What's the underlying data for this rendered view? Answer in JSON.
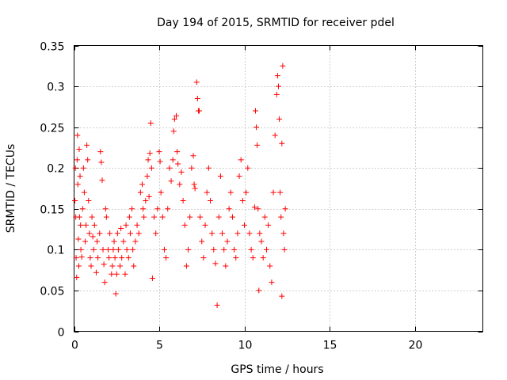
{
  "chart_data": {
    "type": "scatter",
    "title": "Day 194 of 2015, SRMTID for receiver pdel",
    "xlabel": "GPS time / hours",
    "ylabel": "SRMTID / TECUs",
    "xlim": [
      0,
      24
    ],
    "ylim": [
      0,
      0.35
    ],
    "x_ticks": [
      0,
      5,
      10,
      15,
      20
    ],
    "x_tick_labels": [
      "0",
      "5",
      "10",
      "15",
      "20"
    ],
    "y_ticks": [
      0,
      0.05,
      0.1,
      0.15,
      0.2,
      0.25,
      0.3,
      0.35
    ],
    "y_tick_labels": [
      "0",
      "0.05",
      "0.1",
      "0.15",
      "0.2",
      "0.25",
      "0.3",
      "0.35"
    ],
    "grid": true,
    "marker": "+",
    "marker_color": "#ff0000",
    "series": [
      {
        "name": "pdel",
        "points": [
          [
            0.05,
            0.16
          ],
          [
            0.08,
            0.2
          ],
          [
            0.1,
            0.14
          ],
          [
            0.12,
            0.09
          ],
          [
            0.15,
            0.066
          ],
          [
            0.18,
            0.21
          ],
          [
            0.2,
            0.24
          ],
          [
            0.22,
            0.18
          ],
          [
            0.25,
            0.113
          ],
          [
            0.28,
            0.08
          ],
          [
            0.3,
            0.223
          ],
          [
            0.32,
            0.14
          ],
          [
            0.35,
            0.19
          ],
          [
            0.38,
            0.13
          ],
          [
            0.4,
            0.1
          ],
          [
            0.45,
            0.091
          ],
          [
            0.5,
            0.15
          ],
          [
            0.55,
            0.2
          ],
          [
            0.6,
            0.17
          ],
          [
            0.65,
            0.11
          ],
          [
            0.7,
            0.13
          ],
          [
            0.75,
            0.228
          ],
          [
            0.8,
            0.21
          ],
          [
            0.85,
            0.16
          ],
          [
            0.9,
            0.12
          ],
          [
            0.95,
            0.09
          ],
          [
            1.0,
            0.08
          ],
          [
            1.05,
            0.14
          ],
          [
            1.1,
            0.116
          ],
          [
            1.15,
            0.1
          ],
          [
            1.2,
            0.13
          ],
          [
            1.3,
            0.072
          ],
          [
            1.35,
            0.11
          ],
          [
            1.4,
            0.09
          ],
          [
            1.5,
            0.12
          ],
          [
            1.55,
            0.22
          ],
          [
            1.6,
            0.207
          ],
          [
            1.65,
            0.185
          ],
          [
            1.7,
            0.1
          ],
          [
            1.75,
            0.082
          ],
          [
            1.8,
            0.06
          ],
          [
            1.85,
            0.15
          ],
          [
            1.9,
            0.14
          ],
          [
            2.0,
            0.1
          ],
          [
            2.05,
            0.09
          ],
          [
            2.1,
            0.12
          ],
          [
            2.2,
            0.07
          ],
          [
            2.25,
            0.08
          ],
          [
            2.3,
            0.1
          ],
          [
            2.35,
            0.11
          ],
          [
            2.4,
            0.09
          ],
          [
            2.45,
            0.046
          ],
          [
            2.5,
            0.07
          ],
          [
            2.55,
            0.12
          ],
          [
            2.6,
            0.1
          ],
          [
            2.7,
            0.08
          ],
          [
            2.75,
            0.126
          ],
          [
            2.8,
            0.09
          ],
          [
            2.9,
            0.11
          ],
          [
            3.0,
            0.07
          ],
          [
            3.05,
            0.13
          ],
          [
            3.1,
            0.1
          ],
          [
            3.2,
            0.09
          ],
          [
            3.25,
            0.14
          ],
          [
            3.3,
            0.12
          ],
          [
            3.4,
            0.15
          ],
          [
            3.45,
            0.1
          ],
          [
            3.5,
            0.08
          ],
          [
            3.6,
            0.11
          ],
          [
            3.7,
            0.13
          ],
          [
            3.8,
            0.12
          ],
          [
            3.9,
            0.17
          ],
          [
            4.0,
            0.18
          ],
          [
            4.05,
            0.15
          ],
          [
            4.1,
            0.14
          ],
          [
            4.2,
            0.16
          ],
          [
            4.3,
            0.19
          ],
          [
            4.35,
            0.21
          ],
          [
            4.4,
            0.165
          ],
          [
            4.45,
            0.218
          ],
          [
            4.5,
            0.255
          ],
          [
            4.55,
            0.2
          ],
          [
            4.6,
            0.065
          ],
          [
            4.7,
            0.14
          ],
          [
            4.8,
            0.12
          ],
          [
            4.9,
            0.15
          ],
          [
            5.0,
            0.22
          ],
          [
            5.05,
            0.208
          ],
          [
            5.1,
            0.17
          ],
          [
            5.2,
            0.14
          ],
          [
            5.3,
            0.1
          ],
          [
            5.4,
            0.09
          ],
          [
            5.5,
            0.15
          ],
          [
            5.6,
            0.2
          ],
          [
            5.7,
            0.184
          ],
          [
            5.8,
            0.21
          ],
          [
            5.85,
            0.245
          ],
          [
            5.9,
            0.26
          ],
          [
            6.0,
            0.264
          ],
          [
            6.05,
            0.22
          ],
          [
            6.1,
            0.205
          ],
          [
            6.2,
            0.18
          ],
          [
            6.3,
            0.195
          ],
          [
            6.4,
            0.16
          ],
          [
            6.5,
            0.13
          ],
          [
            6.6,
            0.08
          ],
          [
            6.7,
            0.1
          ],
          [
            6.8,
            0.14
          ],
          [
            6.9,
            0.2
          ],
          [
            7.0,
            0.215
          ],
          [
            7.05,
            0.18
          ],
          [
            7.1,
            0.175
          ],
          [
            7.2,
            0.305
          ],
          [
            7.25,
            0.285
          ],
          [
            7.3,
            0.27
          ],
          [
            7.35,
            0.27
          ],
          [
            7.4,
            0.14
          ],
          [
            7.5,
            0.11
          ],
          [
            7.6,
            0.09
          ],
          [
            7.7,
            0.13
          ],
          [
            7.8,
            0.17
          ],
          [
            7.9,
            0.2
          ],
          [
            8.0,
            0.16
          ],
          [
            8.1,
            0.12
          ],
          [
            8.2,
            0.1
          ],
          [
            8.3,
            0.083
          ],
          [
            8.4,
            0.032
          ],
          [
            8.5,
            0.14
          ],
          [
            8.6,
            0.19
          ],
          [
            8.7,
            0.12
          ],
          [
            8.8,
            0.1
          ],
          [
            8.9,
            0.08
          ],
          [
            9.0,
            0.11
          ],
          [
            9.1,
            0.15
          ],
          [
            9.2,
            0.17
          ],
          [
            9.3,
            0.14
          ],
          [
            9.4,
            0.1
          ],
          [
            9.5,
            0.09
          ],
          [
            9.6,
            0.12
          ],
          [
            9.7,
            0.19
          ],
          [
            9.8,
            0.21
          ],
          [
            9.9,
            0.16
          ],
          [
            10.0,
            0.13
          ],
          [
            10.1,
            0.17
          ],
          [
            10.2,
            0.2
          ],
          [
            10.3,
            0.12
          ],
          [
            10.4,
            0.1
          ],
          [
            10.5,
            0.09
          ],
          [
            10.6,
            0.152
          ],
          [
            10.65,
            0.27
          ],
          [
            10.7,
            0.25
          ],
          [
            10.75,
            0.228
          ],
          [
            10.8,
            0.15
          ],
          [
            10.85,
            0.05
          ],
          [
            10.9,
            0.12
          ],
          [
            11.0,
            0.11
          ],
          [
            11.1,
            0.09
          ],
          [
            11.2,
            0.14
          ],
          [
            11.3,
            0.1
          ],
          [
            11.4,
            0.13
          ],
          [
            11.5,
            0.08
          ],
          [
            11.6,
            0.06
          ],
          [
            11.7,
            0.17
          ],
          [
            11.8,
            0.24
          ],
          [
            11.9,
            0.29
          ],
          [
            11.95,
            0.313
          ],
          [
            12.0,
            0.3
          ],
          [
            12.05,
            0.26
          ],
          [
            12.1,
            0.17
          ],
          [
            12.15,
            0.14
          ],
          [
            12.2,
            0.23
          ],
          [
            12.25,
            0.325
          ],
          [
            12.3,
            0.12
          ],
          [
            12.35,
            0.1
          ],
          [
            12.4,
            0.15
          ],
          [
            12.2,
            0.043
          ]
        ]
      }
    ]
  }
}
